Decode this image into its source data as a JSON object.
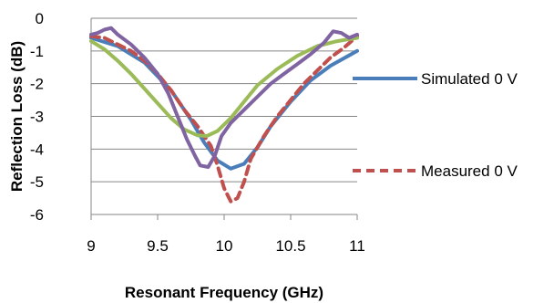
{
  "chart_data": {
    "type": "line",
    "title": "",
    "xlabel": "Resonant Frequency (GHz)",
    "ylabel": "Reflection Loss (dB)",
    "xlim": [
      9,
      11
    ],
    "ylim": [
      -6,
      0
    ],
    "x_ticks": [
      "9",
      "9.5",
      "10",
      "10.5",
      "11"
    ],
    "y_ticks": [
      "0",
      "-1",
      "-2",
      "-3",
      "-4",
      "-5",
      "-6"
    ],
    "grid": "horizontal",
    "legend_placement": "right",
    "series": [
      {
        "name": "Simulated 0 V",
        "color": "#4A7EBB",
        "dash": "solid",
        "points": [
          [
            9,
            -0.6
          ],
          [
            9.2,
            -0.85
          ],
          [
            9.4,
            -1.35
          ],
          [
            9.6,
            -2.2
          ],
          [
            9.75,
            -3.1
          ],
          [
            9.85,
            -3.8
          ],
          [
            9.95,
            -4.35
          ],
          [
            10.05,
            -4.6
          ],
          [
            10.15,
            -4.45
          ],
          [
            10.25,
            -3.95
          ],
          [
            10.35,
            -3.3
          ],
          [
            10.5,
            -2.55
          ],
          [
            10.65,
            -1.9
          ],
          [
            10.8,
            -1.45
          ],
          [
            11,
            -1.0
          ]
        ]
      },
      {
        "name": "Measured 0 V",
        "color": "#C0504D",
        "dash": "dashed",
        "points": [
          [
            9,
            -0.55
          ],
          [
            9.1,
            -0.6
          ],
          [
            9.2,
            -0.8
          ],
          [
            9.3,
            -1.0
          ],
          [
            9.4,
            -1.3
          ],
          [
            9.5,
            -1.7
          ],
          [
            9.6,
            -2.2
          ],
          [
            9.7,
            -2.8
          ],
          [
            9.8,
            -3.3
          ],
          [
            9.85,
            -3.6
          ],
          [
            9.9,
            -3.9
          ],
          [
            9.95,
            -4.5
          ],
          [
            10,
            -5.2
          ],
          [
            10.05,
            -5.6
          ],
          [
            10.1,
            -5.5
          ],
          [
            10.15,
            -5.0
          ],
          [
            10.2,
            -4.3
          ],
          [
            10.3,
            -3.6
          ],
          [
            10.4,
            -3.0
          ],
          [
            10.5,
            -2.5
          ],
          [
            10.6,
            -2.0
          ],
          [
            10.7,
            -1.6
          ],
          [
            10.8,
            -1.2
          ],
          [
            10.9,
            -0.9
          ],
          [
            11,
            -0.55
          ]
        ]
      },
      {
        "name": "",
        "color": "#9BBB59",
        "dash": "solid",
        "points": [
          [
            9,
            -0.7
          ],
          [
            9.1,
            -0.95
          ],
          [
            9.2,
            -1.3
          ],
          [
            9.3,
            -1.7
          ],
          [
            9.4,
            -2.15
          ],
          [
            9.5,
            -2.6
          ],
          [
            9.6,
            -3.05
          ],
          [
            9.7,
            -3.4
          ],
          [
            9.8,
            -3.58
          ],
          [
            9.87,
            -3.6
          ],
          [
            9.95,
            -3.45
          ],
          [
            10.05,
            -3.05
          ],
          [
            10.15,
            -2.55
          ],
          [
            10.25,
            -2.05
          ],
          [
            10.4,
            -1.55
          ],
          [
            10.55,
            -1.15
          ],
          [
            10.7,
            -0.85
          ],
          [
            10.85,
            -0.7
          ],
          [
            11,
            -0.6
          ]
        ]
      },
      {
        "name": "",
        "color": "#8064A2",
        "dash": "solid",
        "points": [
          [
            9,
            -0.5
          ],
          [
            9.05,
            -0.45
          ],
          [
            9.1,
            -0.35
          ],
          [
            9.15,
            -0.3
          ],
          [
            9.2,
            -0.5
          ],
          [
            9.3,
            -0.8
          ],
          [
            9.4,
            -1.2
          ],
          [
            9.5,
            -1.7
          ],
          [
            9.58,
            -2.3
          ],
          [
            9.65,
            -3.0
          ],
          [
            9.72,
            -3.7
          ],
          [
            9.78,
            -4.2
          ],
          [
            9.82,
            -4.5
          ],
          [
            9.88,
            -4.55
          ],
          [
            9.93,
            -4.2
          ],
          [
            9.98,
            -3.6
          ],
          [
            10.05,
            -3.2
          ],
          [
            10.15,
            -2.8
          ],
          [
            10.25,
            -2.4
          ],
          [
            10.35,
            -2.0
          ],
          [
            10.45,
            -1.7
          ],
          [
            10.55,
            -1.4
          ],
          [
            10.65,
            -1.1
          ],
          [
            10.75,
            -0.75
          ],
          [
            10.82,
            -0.4
          ],
          [
            10.88,
            -0.45
          ],
          [
            10.94,
            -0.6
          ],
          [
            11,
            -0.5
          ]
        ]
      }
    ]
  }
}
